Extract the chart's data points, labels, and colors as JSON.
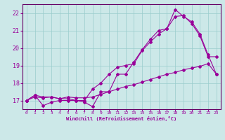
{
  "xlabel": "Windchill (Refroidissement éolien,°C)",
  "bg_color": "#cce8e8",
  "grid_color": "#99cccc",
  "line_color": "#990099",
  "spine_color": "#660066",
  "xlim": [
    -0.5,
    23.5
  ],
  "ylim": [
    16.5,
    22.5
  ],
  "yticks": [
    17,
    18,
    19,
    20,
    21,
    22
  ],
  "xticks": [
    0,
    1,
    2,
    3,
    4,
    5,
    6,
    7,
    8,
    9,
    10,
    11,
    12,
    13,
    14,
    15,
    16,
    17,
    18,
    19,
    20,
    21,
    22,
    23
  ],
  "series": [
    {
      "x": [
        0,
        1,
        2,
        3,
        4,
        5,
        6,
        7,
        8,
        9,
        10,
        11,
        12,
        13,
        14,
        15,
        16,
        17,
        18,
        19,
        20,
        21,
        22,
        23
      ],
      "y": [
        17.0,
        17.3,
        16.7,
        16.9,
        17.0,
        17.0,
        17.0,
        16.9,
        16.65,
        17.5,
        17.5,
        18.5,
        18.5,
        19.2,
        19.9,
        20.5,
        21.0,
        21.1,
        22.2,
        21.8,
        21.5,
        20.8,
        19.6,
        18.5
      ]
    },
    {
      "x": [
        0,
        1,
        2,
        3,
        4,
        5,
        6,
        7,
        8,
        9,
        10,
        11,
        12,
        13,
        14,
        15,
        16,
        17,
        18,
        19,
        20,
        21,
        22,
        23
      ],
      "y": [
        17.0,
        17.3,
        17.2,
        17.2,
        17.1,
        17.1,
        17.0,
        17.0,
        17.65,
        18.0,
        18.5,
        18.9,
        19.0,
        19.1,
        19.85,
        20.35,
        20.8,
        21.1,
        21.8,
        21.85,
        21.4,
        20.7,
        19.5,
        19.5
      ]
    },
    {
      "x": [
        0,
        1,
        2,
        3,
        4,
        5,
        6,
        7,
        8,
        9,
        10,
        11,
        12,
        13,
        14,
        15,
        16,
        17,
        18,
        19,
        20,
        21,
        22,
        23
      ],
      "y": [
        17.0,
        17.2,
        17.15,
        17.2,
        17.1,
        17.2,
        17.15,
        17.15,
        17.2,
        17.35,
        17.5,
        17.65,
        17.8,
        17.9,
        18.05,
        18.2,
        18.35,
        18.5,
        18.6,
        18.75,
        18.85,
        18.95,
        19.1,
        18.5
      ]
    }
  ]
}
